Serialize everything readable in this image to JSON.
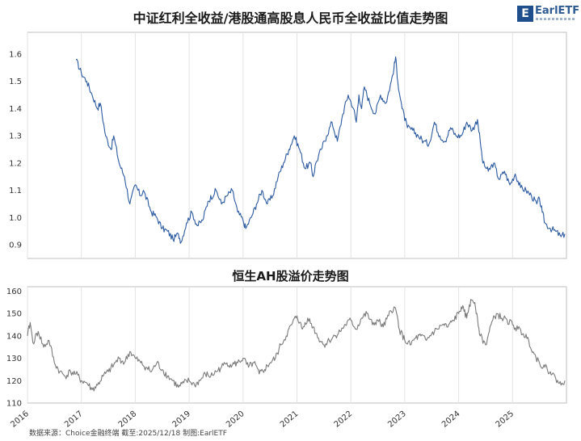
{
  "logo": {
    "mark": "E",
    "text": "EarlETF"
  },
  "source_note": "数据来源：Choice金融终端 截至:2025/12/18 制图:EarlETF",
  "chart_data": [
    {
      "type": "line",
      "title": "中证红利全收益/港股通高股息人民币全收益比值走势图",
      "xlabel": "",
      "ylabel": "",
      "xlim": [
        2016.0,
        2026.0
      ],
      "ylim": [
        0.85,
        1.68
      ],
      "yticks": [
        0.9,
        1.0,
        1.1,
        1.2,
        1.3,
        1.4,
        1.5,
        1.6
      ],
      "ytick_labels": [
        "0.9",
        "1.0",
        "1.1",
        "1.2",
        "1.3",
        "1.4",
        "1.5",
        "1.6"
      ],
      "grid": "vertical-yearly",
      "series": [
        {
          "color": "#2c5aa0",
          "x": [
            2016.9,
            2017.0,
            2017.1,
            2017.2,
            2017.3,
            2017.35,
            2017.45,
            2017.55,
            2017.6,
            2017.7,
            2017.8,
            2017.9,
            2018.0,
            2018.1,
            2018.15,
            2018.3,
            2018.4,
            2018.5,
            2018.6,
            2018.7,
            2018.8,
            2018.85,
            2018.95,
            2019.05,
            2019.15,
            2019.25,
            2019.35,
            2019.5,
            2019.6,
            2019.7,
            2019.8,
            2019.9,
            2020.0,
            2020.05,
            2020.15,
            2020.25,
            2020.35,
            2020.45,
            2020.55,
            2020.65,
            2020.75,
            2020.85,
            2020.95,
            2021.05,
            2021.15,
            2021.25,
            2021.3,
            2021.35,
            2021.45,
            2021.55,
            2021.65,
            2021.75,
            2021.85,
            2021.95,
            2022.05,
            2022.1,
            2022.15,
            2022.2,
            2022.25,
            2022.35,
            2022.45,
            2022.55,
            2022.65,
            2022.75,
            2022.8,
            2022.83,
            2022.87,
            2022.95,
            2023.05,
            2023.15,
            2023.25,
            2023.35,
            2023.45,
            2023.55,
            2023.65,
            2023.75,
            2023.85,
            2023.95,
            2024.05,
            2024.15,
            2024.25,
            2024.35,
            2024.4,
            2024.45,
            2024.55,
            2024.65,
            2024.75,
            2024.85,
            2024.95,
            2025.05,
            2025.15,
            2025.25,
            2025.35,
            2025.45,
            2025.5,
            2025.55,
            2025.6,
            2025.7,
            2025.8,
            2025.9,
            2025.97
          ],
          "y": [
            1.58,
            1.53,
            1.5,
            1.45,
            1.4,
            1.42,
            1.3,
            1.25,
            1.3,
            1.2,
            1.15,
            1.05,
            1.12,
            1.08,
            1.1,
            1.02,
            1.0,
            0.96,
            0.95,
            0.92,
            0.94,
            0.91,
            0.98,
            1.02,
            0.97,
            0.99,
            1.06,
            1.1,
            1.05,
            1.08,
            1.1,
            1.02,
            0.99,
            0.96,
            1.0,
            1.05,
            1.1,
            1.05,
            1.08,
            1.15,
            1.2,
            1.25,
            1.3,
            1.25,
            1.18,
            1.2,
            1.15,
            1.2,
            1.25,
            1.3,
            1.35,
            1.28,
            1.38,
            1.45,
            1.4,
            1.35,
            1.45,
            1.4,
            1.48,
            1.42,
            1.38,
            1.45,
            1.42,
            1.5,
            1.55,
            1.59,
            1.5,
            1.4,
            1.33,
            1.32,
            1.3,
            1.28,
            1.27,
            1.35,
            1.3,
            1.28,
            1.33,
            1.3,
            1.3,
            1.35,
            1.32,
            1.36,
            1.28,
            1.2,
            1.17,
            1.2,
            1.14,
            1.17,
            1.12,
            1.16,
            1.11,
            1.1,
            1.08,
            1.05,
            1.07,
            1.02,
            0.98,
            0.96,
            0.95,
            0.93,
            0.94
          ]
        }
      ]
    },
    {
      "type": "line",
      "title": "恒生AH股溢价走势图",
      "xlabel": "",
      "ylabel": "",
      "xlim": [
        2016.0,
        2026.0
      ],
      "ylim": [
        110,
        162
      ],
      "yticks": [
        110,
        120,
        130,
        140,
        150,
        160
      ],
      "ytick_labels": [
        "110",
        "120",
        "130",
        "140",
        "150",
        "160"
      ],
      "xticks": [
        2016,
        2017,
        2018,
        2019,
        2020,
        2021,
        2022,
        2023,
        2024,
        2025
      ],
      "xtick_labels": [
        "2016",
        "2017",
        "2018",
        "2019",
        "2020",
        "2021",
        "2022",
        "2023",
        "2024",
        "2025"
      ],
      "grid": "vertical-yearly",
      "series": [
        {
          "color": "#7a7a7a",
          "x": [
            2016.0,
            2016.05,
            2016.1,
            2016.2,
            2016.3,
            2016.4,
            2016.5,
            2016.6,
            2016.7,
            2016.8,
            2016.9,
            2017.0,
            2017.1,
            2017.2,
            2017.3,
            2017.4,
            2017.5,
            2017.6,
            2017.7,
            2017.8,
            2017.9,
            2018.0,
            2018.1,
            2018.2,
            2018.3,
            2018.4,
            2018.5,
            2018.6,
            2018.7,
            2018.8,
            2018.9,
            2019.0,
            2019.1,
            2019.2,
            2019.3,
            2019.4,
            2019.5,
            2019.6,
            2019.7,
            2019.8,
            2019.9,
            2020.0,
            2020.1,
            2020.2,
            2020.3,
            2020.4,
            2020.5,
            2020.6,
            2020.7,
            2020.8,
            2020.9,
            2021.0,
            2021.05,
            2021.1,
            2021.2,
            2021.3,
            2021.4,
            2021.5,
            2021.6,
            2021.7,
            2021.8,
            2021.9,
            2022.0,
            2022.1,
            2022.2,
            2022.3,
            2022.4,
            2022.5,
            2022.6,
            2022.7,
            2022.8,
            2022.85,
            2022.9,
            2023.0,
            2023.1,
            2023.2,
            2023.3,
            2023.4,
            2023.5,
            2023.6,
            2023.7,
            2023.8,
            2023.9,
            2024.0,
            2024.05,
            2024.1,
            2024.15,
            2024.2,
            2024.25,
            2024.3,
            2024.35,
            2024.4,
            2024.5,
            2024.6,
            2024.7,
            2024.8,
            2024.9,
            2025.0,
            2025.1,
            2025.2,
            2025.3,
            2025.4,
            2025.5,
            2025.6,
            2025.7,
            2025.8,
            2025.9,
            2025.97
          ],
          "y": [
            140,
            146,
            137,
            142,
            135,
            138,
            128,
            124,
            122,
            124,
            123,
            120,
            119,
            116,
            118,
            122,
            124,
            127,
            130,
            128,
            133,
            130,
            128,
            126,
            124,
            128,
            125,
            122,
            120,
            117,
            119,
            120,
            118,
            120,
            123,
            122,
            124,
            126,
            128,
            127,
            128,
            130,
            126,
            128,
            123,
            125,
            128,
            130,
            136,
            140,
            145,
            149,
            146,
            143,
            148,
            144,
            139,
            136,
            138,
            140,
            142,
            145,
            147,
            143,
            148,
            150,
            145,
            147,
            144,
            149,
            153,
            150,
            143,
            138,
            136,
            139,
            140,
            138,
            141,
            143,
            145,
            144,
            147,
            150,
            153,
            151,
            148,
            154,
            156,
            155,
            148,
            140,
            136,
            145,
            150,
            148,
            147,
            145,
            143,
            141,
            138,
            132,
            128,
            126,
            124,
            121,
            118,
            120
          ]
        }
      ]
    }
  ]
}
